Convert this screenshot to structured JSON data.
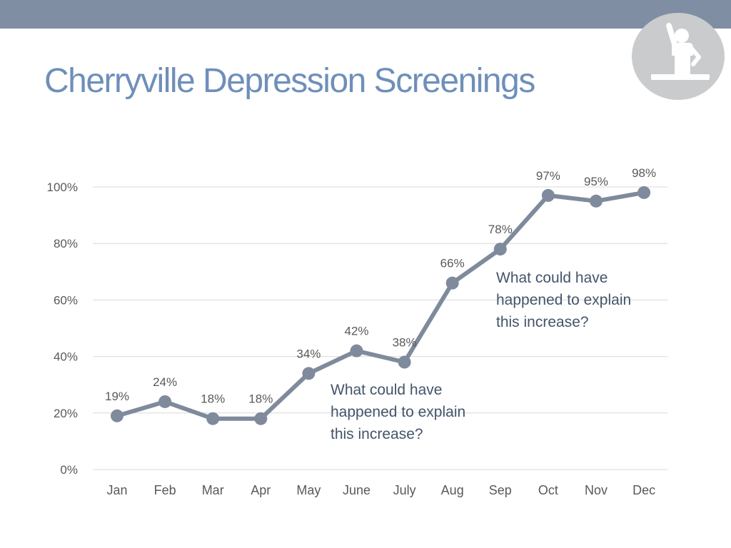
{
  "slide": {
    "title": "Cherryville Depression Screenings",
    "colors": {
      "top_bar": "#7f8ea3",
      "title": "#6f8fba",
      "line": "#7f8a9c",
      "badge": "#c9cbcd"
    },
    "badge_icon": "presenter-raising-hand-icon"
  },
  "chart_data": {
    "type": "line",
    "categories": [
      "Jan",
      "Feb",
      "Mar",
      "Apr",
      "May",
      "June",
      "July",
      "Aug",
      "Sep",
      "Oct",
      "Nov",
      "Dec"
    ],
    "series": [
      {
        "values": [
          19,
          24,
          18,
          18,
          34,
          42,
          38,
          66,
          78,
          97,
          95,
          98
        ],
        "labels": [
          "19%",
          "24%",
          "18%",
          "18%",
          "34%",
          "42%",
          "38%",
          "66%",
          "78%",
          "97%",
          "95%",
          "98%"
        ]
      }
    ],
    "y_ticks": [
      "0%",
      "20%",
      "40%",
      "60%",
      "80%",
      "100%"
    ],
    "ylim": [
      0,
      100
    ],
    "grid": true,
    "legend": "none",
    "annotations": [
      {
        "lines": [
          "What could have",
          "happened to explain",
          "this increase?"
        ],
        "near": "May"
      },
      {
        "lines": [
          "What could have",
          "happened to explain",
          "this increase?"
        ],
        "near": "Sep"
      }
    ]
  }
}
